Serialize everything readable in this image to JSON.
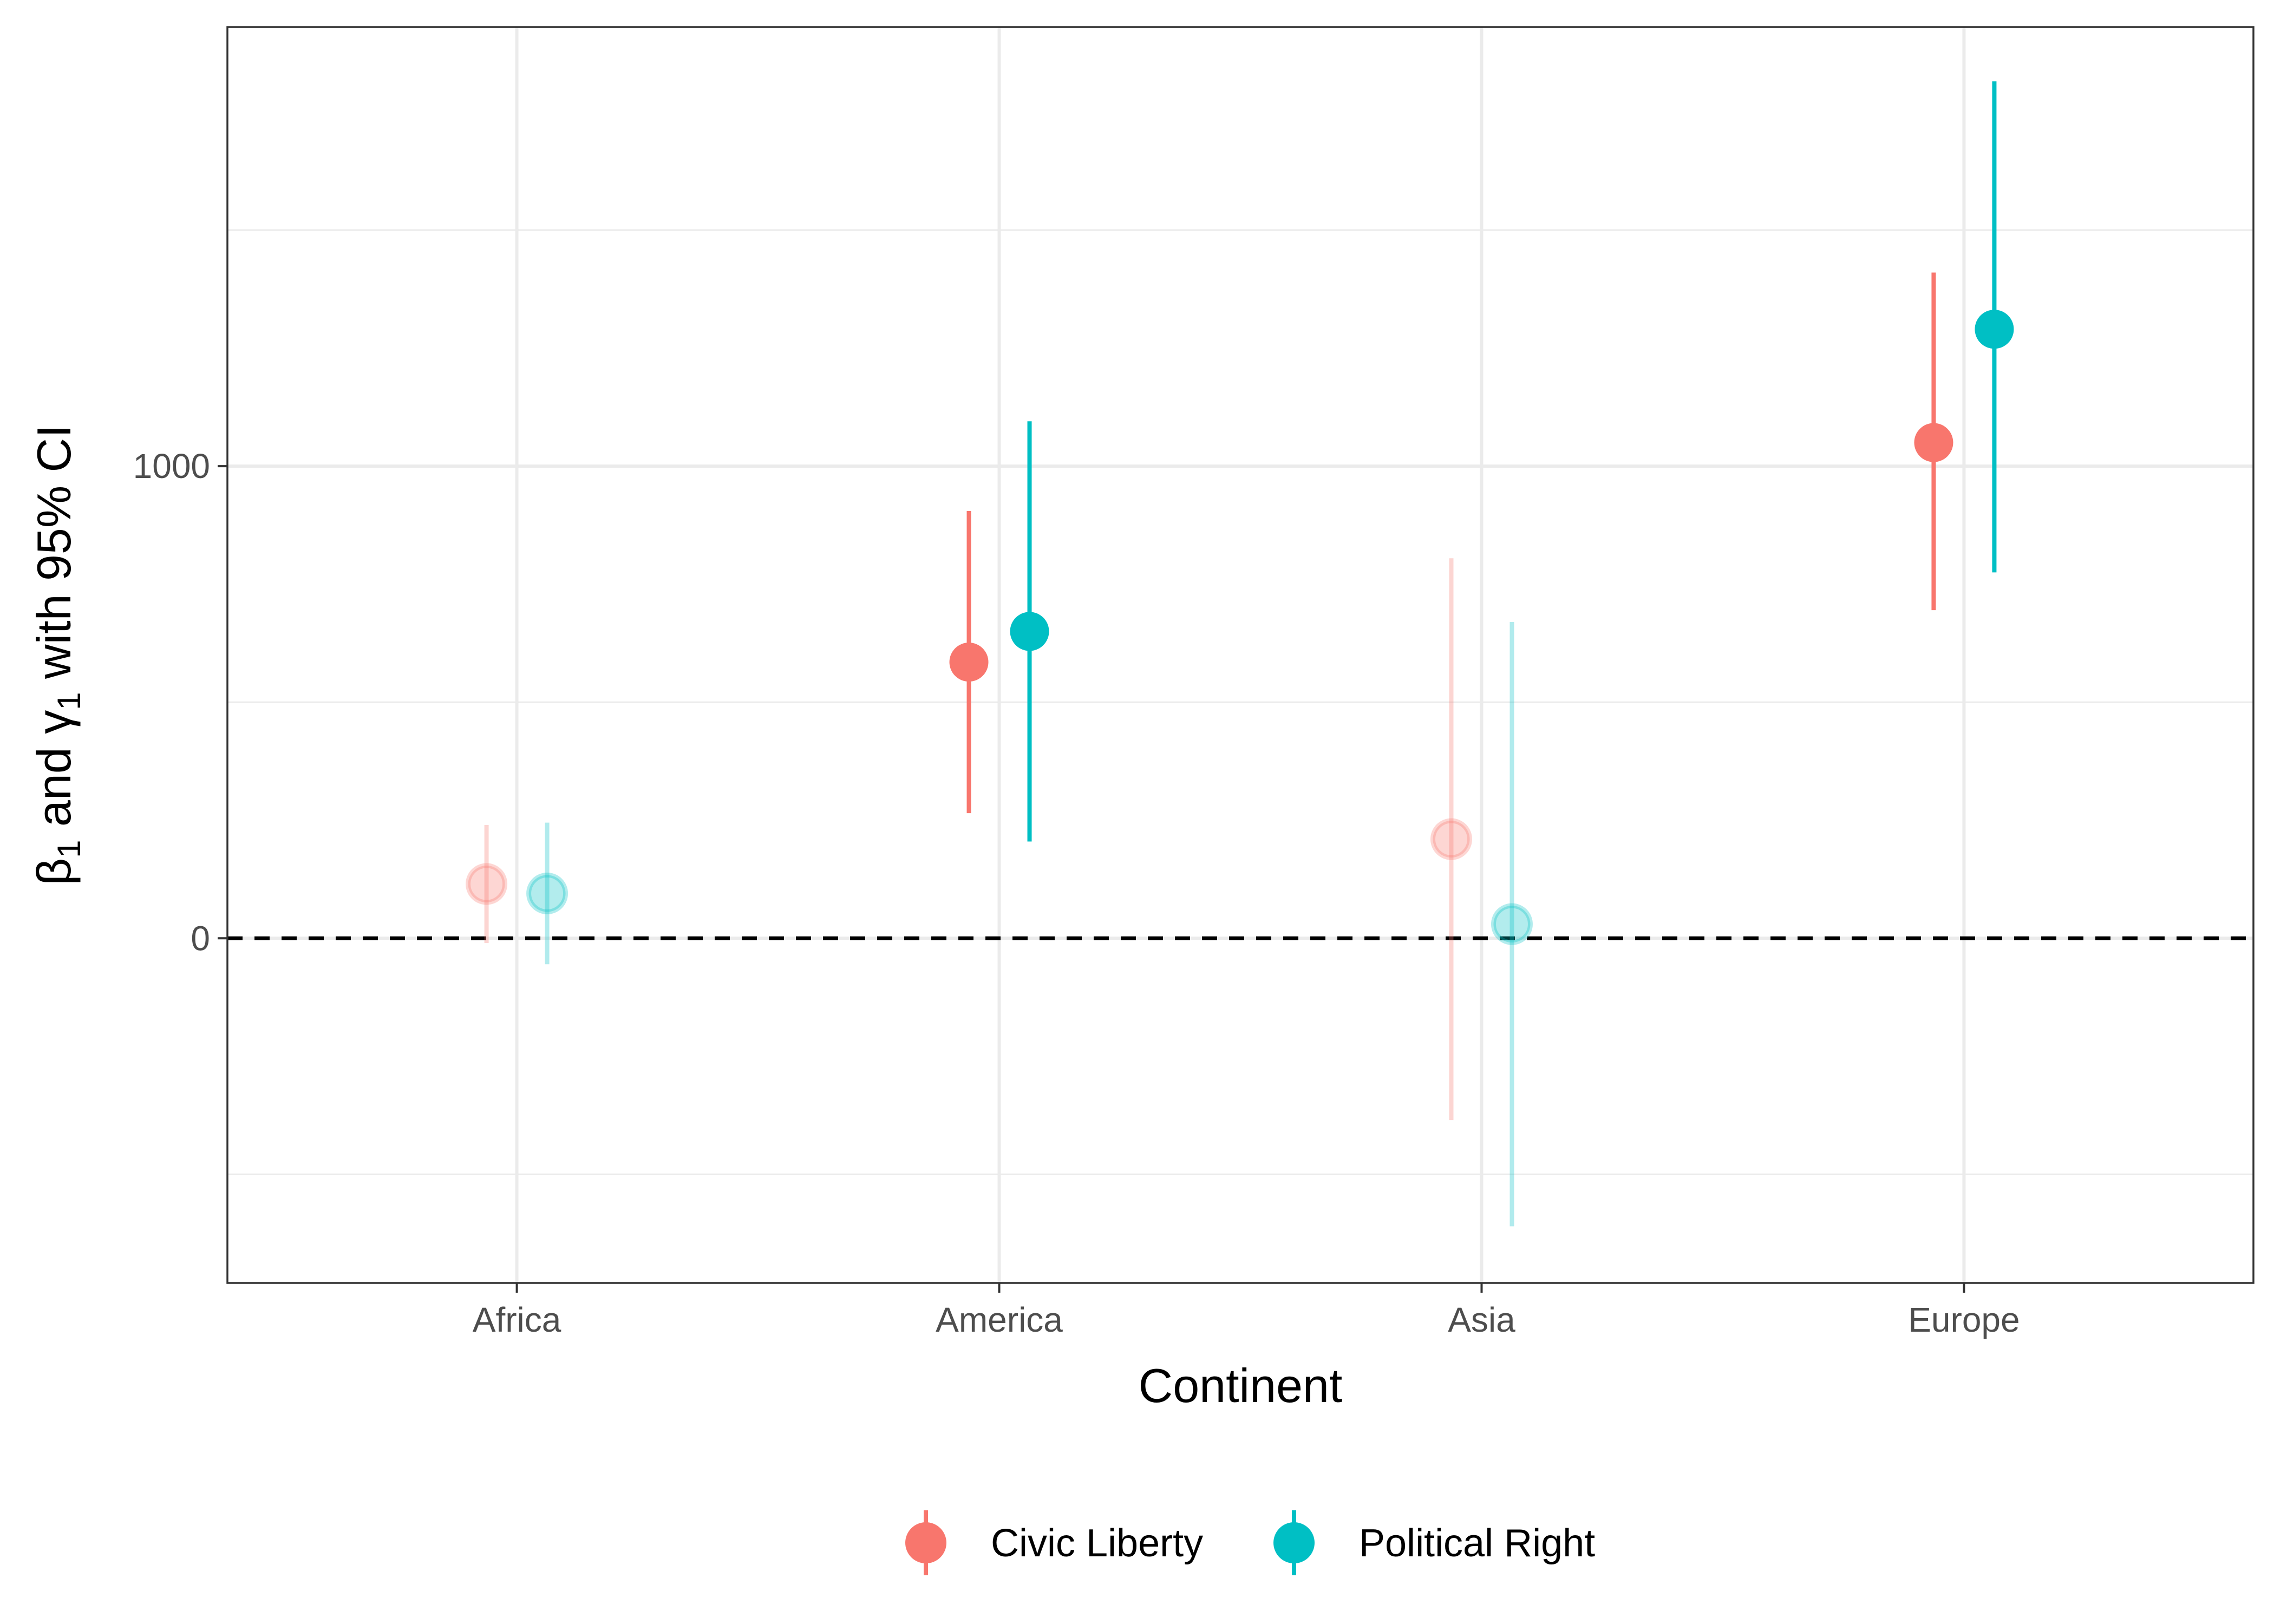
{
  "chart_data": {
    "type": "scatter",
    "subtype": "point-range",
    "title": "",
    "xlabel": "Continent",
    "ylabel": "β1 and γ1 with 95% CI",
    "ylabel_parts": {
      "beta": "β",
      "sub1": "1",
      "and": " and ",
      "gamma": "γ",
      "sub2": "1",
      "rest": " with 95% CI"
    },
    "categories": [
      "Africa",
      "America",
      "Asia",
      "Europe"
    ],
    "yticks": [
      {
        "value": 0,
        "label": "0"
      },
      {
        "value": 1000,
        "label": "1000"
      }
    ],
    "ylim": [
      -730,
      1930
    ],
    "grid": true,
    "reference_line": {
      "value": 0,
      "style": "dashed"
    },
    "legend_position": "bottom",
    "series": [
      {
        "name": "Civic Liberty",
        "color": "#F8766D",
        "points": [
          {
            "category": "Africa",
            "estimate": 115,
            "lower": -10,
            "upper": 240,
            "significant": false
          },
          {
            "category": "America",
            "estimate": 585,
            "lower": 265,
            "upper": 905,
            "significant": true
          },
          {
            "category": "Asia",
            "estimate": 210,
            "lower": -385,
            "upper": 805,
            "significant": false
          },
          {
            "category": "Europe",
            "estimate": 1050,
            "lower": 695,
            "upper": 1410,
            "significant": true
          }
        ]
      },
      {
        "name": "Political Right",
        "color": "#00BFC4",
        "points": [
          {
            "category": "Africa",
            "estimate": 95,
            "lower": -55,
            "upper": 245,
            "significant": false
          },
          {
            "category": "America",
            "estimate": 650,
            "lower": 205,
            "upper": 1095,
            "significant": true
          },
          {
            "category": "Asia",
            "estimate": 30,
            "lower": -610,
            "upper": 670,
            "significant": false
          },
          {
            "category": "Europe",
            "estimate": 1290,
            "lower": 775,
            "upper": 1815,
            "significant": true
          }
        ]
      }
    ]
  }
}
